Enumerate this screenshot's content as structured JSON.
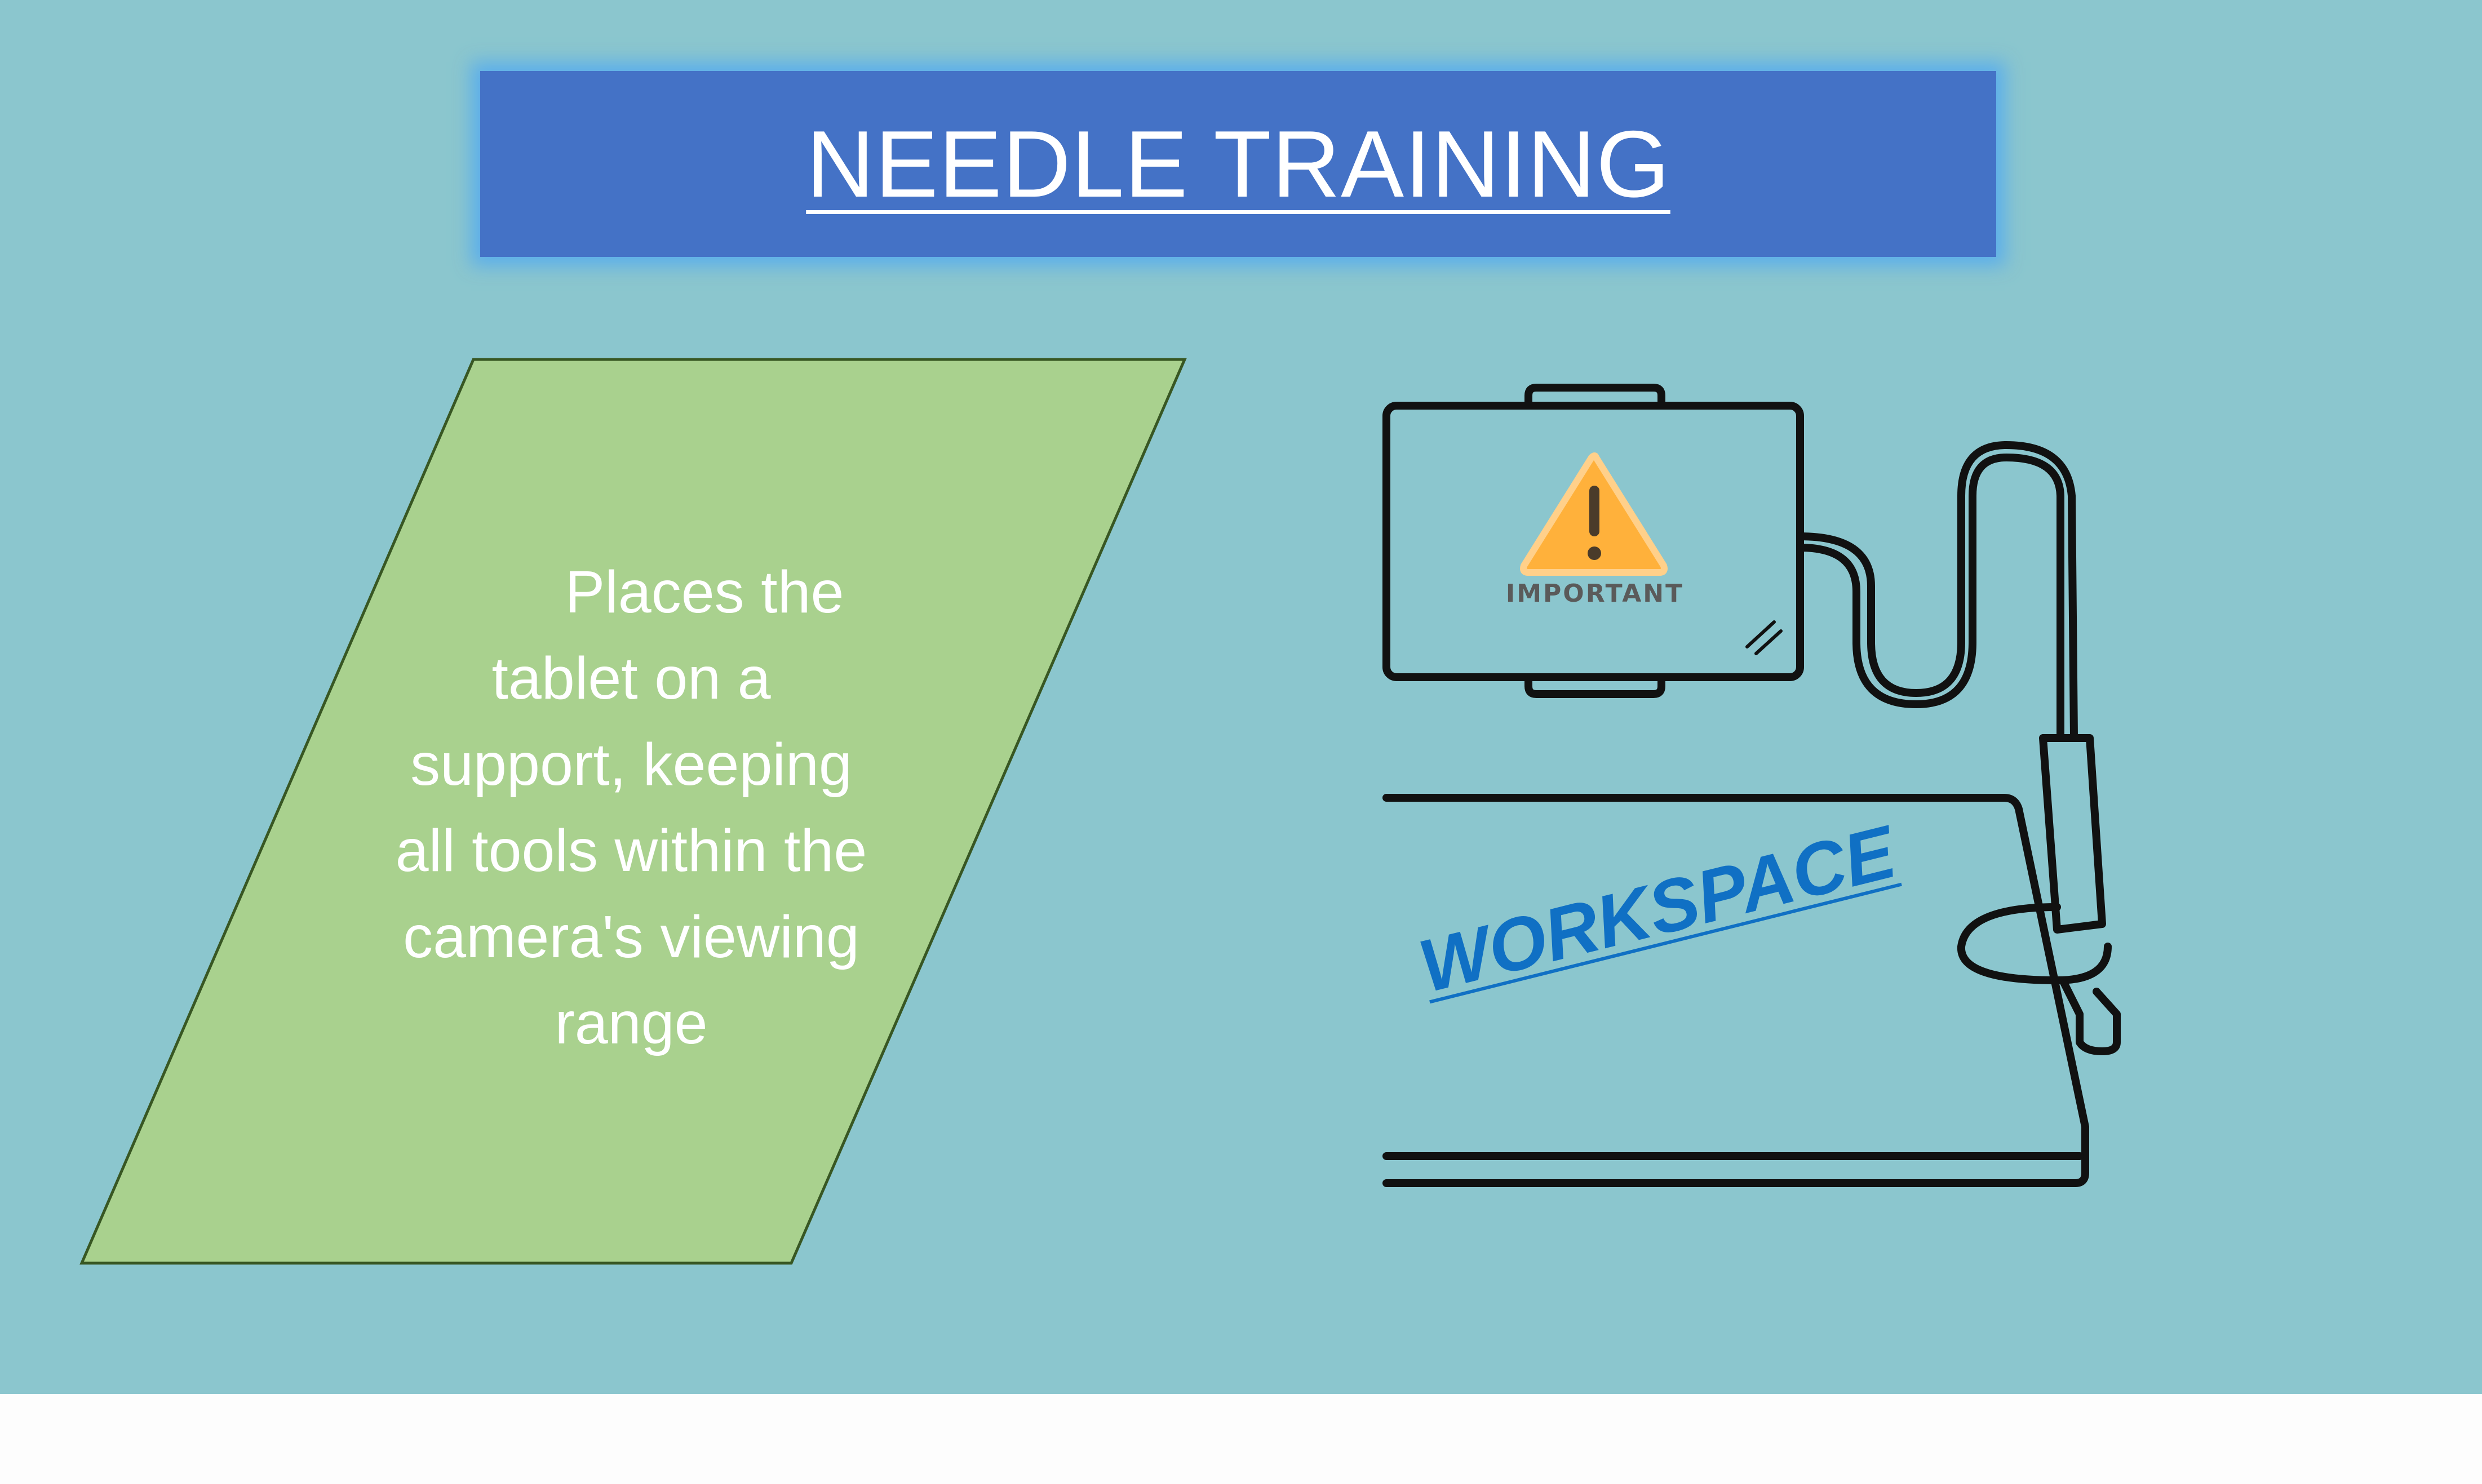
{
  "title": "NEEDLE TRAINING",
  "instruction": {
    "lines": [
      "Places the",
      "tablet on a",
      "support, keeping",
      "all tools within the",
      "camera's viewing",
      "range"
    ]
  },
  "illustration": {
    "tablet_warning_label": "IMPORTANT",
    "workspace_label": "WORKSPACE"
  },
  "colors": {
    "background": "#8bc6ce",
    "banner": "#4472c6",
    "banner_glow": "#54aaf0",
    "parallelogram_fill": "#a9d18e",
    "parallelogram_border": "#385723",
    "warning_fill": "#ffb13b",
    "workspace_text": "#1070c4",
    "line_art": "#111111"
  },
  "icons": [
    "warning-triangle-icon",
    "tablet-holder-icon"
  ]
}
